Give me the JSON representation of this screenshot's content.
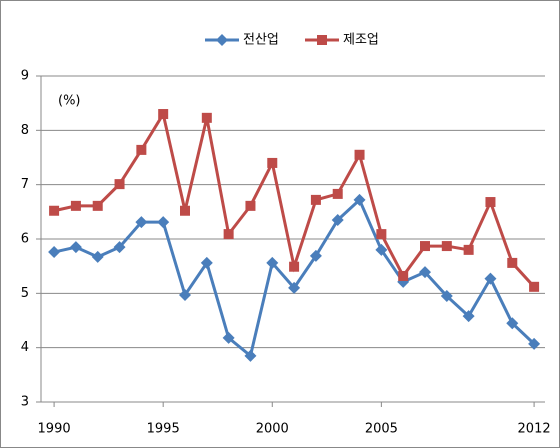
{
  "chart_data": {
    "type": "line",
    "annotation": "(%)",
    "x": [
      1990,
      1991,
      1992,
      1993,
      1994,
      1995,
      1996,
      1997,
      1998,
      1999,
      2000,
      2001,
      2002,
      2003,
      2004,
      2005,
      2006,
      2007,
      2008,
      2009,
      2010,
      2011,
      2012
    ],
    "series": [
      {
        "name": "전산업",
        "color": "#4a7ebb",
        "marker": "diamond",
        "values": [
          5.76,
          5.85,
          5.67,
          5.85,
          6.31,
          6.31,
          4.97,
          5.56,
          4.18,
          3.85,
          5.56,
          5.1,
          5.69,
          6.35,
          6.72,
          5.8,
          5.21,
          5.39,
          4.95,
          4.58,
          5.27,
          4.45,
          4.07
        ]
      },
      {
        "name": "제조업",
        "color": "#be4b48",
        "marker": "square",
        "values": [
          6.52,
          6.61,
          6.61,
          7.01,
          7.64,
          8.3,
          6.52,
          8.23,
          6.09,
          6.61,
          7.4,
          5.49,
          6.72,
          6.83,
          7.55,
          6.09,
          5.32,
          5.87,
          5.87,
          5.8,
          6.68,
          5.56,
          5.12
        ]
      }
    ],
    "xlim": [
      1989.4,
      2012.5
    ],
    "xticks": [
      1990,
      1995,
      2000,
      2005,
      2012
    ],
    "ylim": [
      3,
      9
    ],
    "yticks": [
      3,
      4,
      5,
      6,
      7,
      8,
      9
    ],
    "grid": true,
    "legend": "top"
  }
}
